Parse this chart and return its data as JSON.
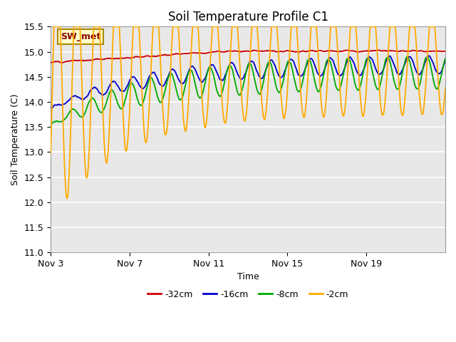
{
  "title": "Soil Temperature Profile C1",
  "xlabel": "Time",
  "ylabel": "Soil Temperature (C)",
  "ylim": [
    11.0,
    15.5
  ],
  "yticks": [
    11.0,
    11.5,
    12.0,
    12.5,
    13.0,
    13.5,
    14.0,
    14.5,
    15.0,
    15.5
  ],
  "xtick_labels": [
    "Nov 3",
    "Nov 7",
    "Nov 11",
    "Nov 15",
    "Nov 19"
  ],
  "xtick_positions": [
    0,
    4,
    8,
    12,
    16
  ],
  "colors": {
    "-32cm": "#cc0000",
    "-16cm": "#0000cc",
    "-8cm": "#00aa00",
    "-2cm": "#ffaa00"
  },
  "legend_label": "SW_met",
  "legend_box_facecolor": "#ffffcc",
  "legend_box_edgecolor": "#aa8800",
  "legend_text_color": "#8B0000",
  "background_color": "#ffffff",
  "plot_bg_color": "#e8e8e8",
  "grid_color": "#ffffff",
  "n_days": 20,
  "pts_per_day": 48,
  "title_fontsize": 12,
  "axis_fontsize": 9,
  "tick_fontsize": 9
}
